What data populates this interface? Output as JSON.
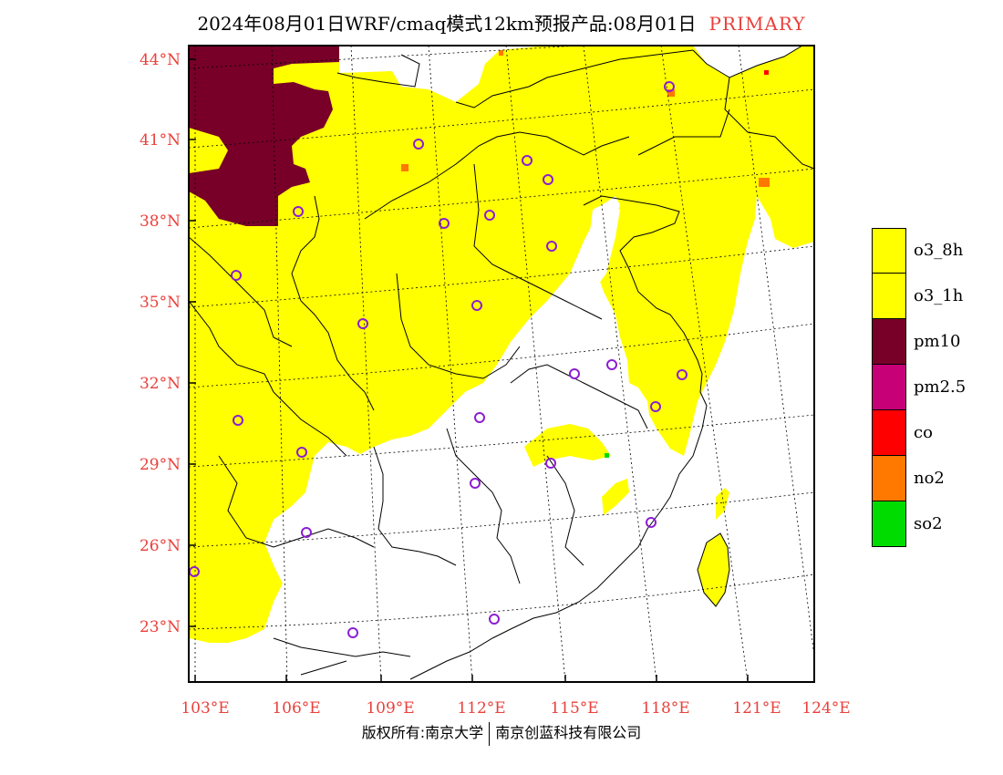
{
  "title": {
    "main": "2024年08月01日WRF/cmaq模式12km预报产品:08月01日",
    "tag": "PRIMARY"
  },
  "credit": {
    "left": "版权所有:南京大学",
    "right": "南京创蓝科技有限公司"
  },
  "axes": {
    "lat_ticks": [
      "44°N",
      "41°N",
      "38°N",
      "35°N",
      "32°N",
      "29°N",
      "26°N",
      "23°N"
    ],
    "lon_ticks": [
      "103°E",
      "106°E",
      "109°E",
      "112°E",
      "115°E",
      "118°E",
      "121°E",
      "124°E"
    ]
  },
  "legend": [
    {
      "label": "o3_8h",
      "color": "#ffff00"
    },
    {
      "label": "o3_1h",
      "color": "#ffff00"
    },
    {
      "label": "pm10",
      "color": "#780028"
    },
    {
      "label": "pm2.5",
      "color": "#c80078"
    },
    {
      "label": "co",
      "color": "#ff0000"
    },
    {
      "label": "no2",
      "color": "#ff7800"
    },
    {
      "label": "so2",
      "color": "#00dc00"
    }
  ],
  "colors": {
    "tick_label": "#e8413c",
    "station_marker": "#8c1ed2",
    "frame": "#000000"
  }
}
